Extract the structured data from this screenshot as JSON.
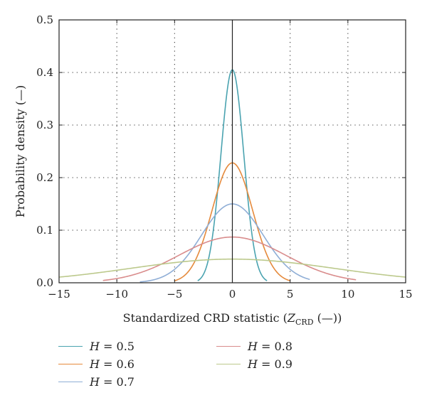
{
  "chart_data": {
    "type": "line",
    "xlabel": "Standardized CRD statistic (Z_CRD (—))",
    "xlabel_parts": {
      "prefix": "Standardized CRD statistic (",
      "var": "Z",
      "sub": "CRD",
      "suffix": " (—))"
    },
    "ylabel": "Probability density (—)",
    "xlim": [
      -15,
      15
    ],
    "ylim": [
      0,
      0.5
    ],
    "xticks": [
      -15,
      -10,
      -5,
      0,
      5,
      10,
      15
    ],
    "xtick_labels": [
      "−15",
      "−10",
      "−5",
      "0",
      "5",
      "10",
      "15"
    ],
    "yticks": [
      0.0,
      0.1,
      0.2,
      0.3,
      0.4,
      0.5
    ],
    "ytick_labels": [
      "0.0",
      "0.1",
      "0.2",
      "0.3",
      "0.4",
      "0.5"
    ],
    "grid": "dotted",
    "legend_placement": "bottom",
    "series": [
      {
        "name": "H = 0.5",
        "var": "H",
        "value": "0.5",
        "color": "#4aa3b0",
        "peak": 0.405,
        "x_range": [
          -3,
          3
        ]
      },
      {
        "name": "H = 0.6",
        "var": "H",
        "value": "0.6",
        "color": "#e58a3c",
        "peak": 0.228,
        "x_range": [
          -5,
          5
        ]
      },
      {
        "name": "H = 0.7",
        "var": "H",
        "value": "0.7",
        "color": "#8faed6",
        "peak": 0.15,
        "x_range": [
          -8,
          6.7
        ]
      },
      {
        "name": "H = 0.8",
        "var": "H",
        "value": "0.8",
        "color": "#d98c8c",
        "peak": 0.087,
        "x_range": [
          -11.2,
          10.7
        ]
      },
      {
        "name": "H = 0.9",
        "var": "H",
        "value": "0.9",
        "color": "#bcc98c",
        "peak": 0.045,
        "x_range": [
          -15,
          15
        ]
      }
    ]
  }
}
